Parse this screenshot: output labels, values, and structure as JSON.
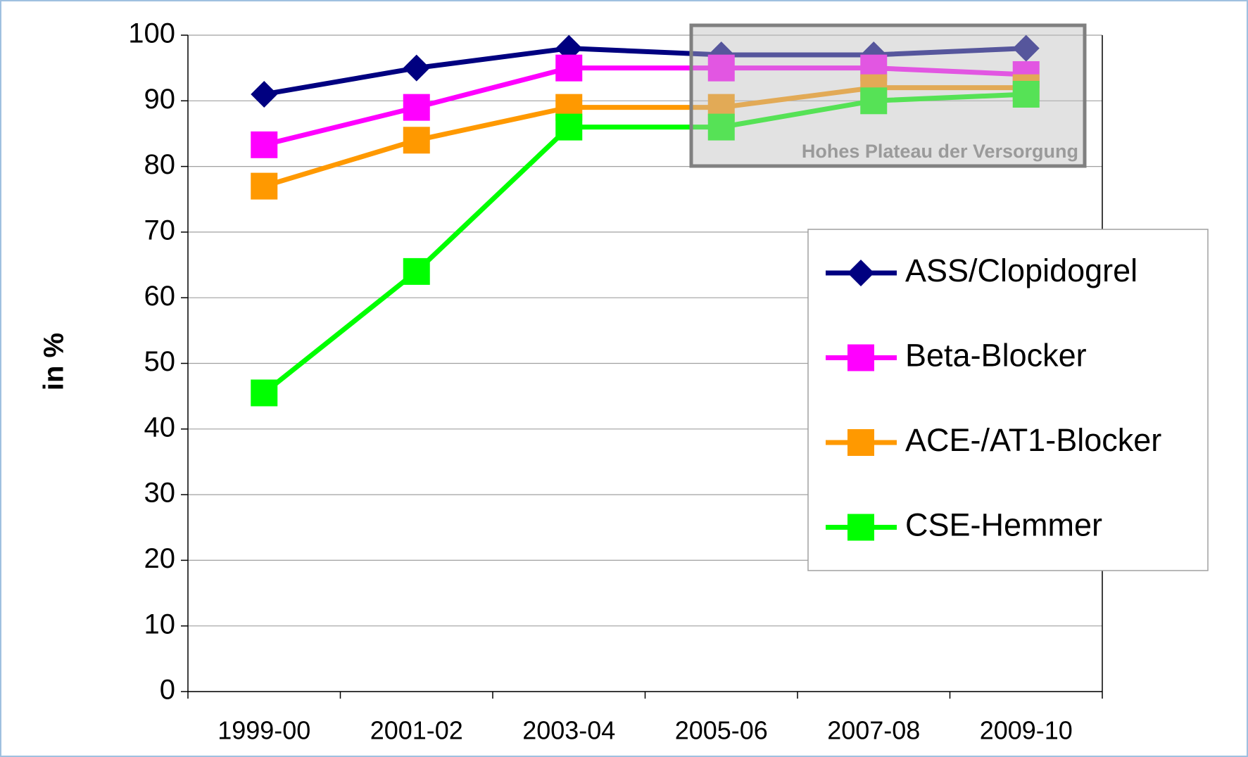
{
  "chart_data": {
    "type": "line",
    "categories": [
      "1999-00",
      "2001-02",
      "2003-04",
      "2005-06",
      "2007-08",
      "2009-10"
    ],
    "series": [
      {
        "name": "ASS/Clopidogrel",
        "color": "#000080",
        "marker": "diamond",
        "values": [
          91,
          95,
          98,
          97,
          97,
          98
        ]
      },
      {
        "name": "Beta-Blocker",
        "color": "#ff00ff",
        "marker": "square",
        "values": [
          83.3,
          89,
          95,
          95,
          95,
          94
        ]
      },
      {
        "name": "ACE-/AT1-Blocker",
        "color": "#ff9900",
        "marker": "square",
        "values": [
          77,
          84,
          89,
          89,
          92,
          92
        ]
      },
      {
        "name": "CSE-Hemmer",
        "color": "#00ff00",
        "marker": "square",
        "values": [
          45.5,
          64,
          86,
          86,
          90,
          91
        ]
      }
    ],
    "y_label": "in %",
    "annotation": "Hohes Plateau der Versorgung",
    "ylim": [
      0,
      100
    ],
    "yticks": [
      0,
      10,
      20,
      30,
      40,
      50,
      60,
      70,
      80,
      90,
      100
    ],
    "grid": true
  }
}
